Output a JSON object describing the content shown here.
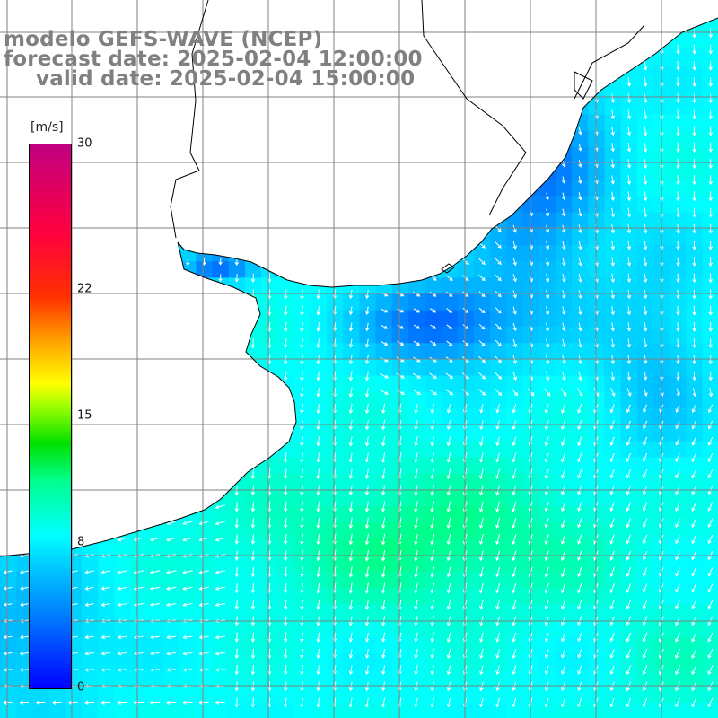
{
  "title": {
    "line1": "modelo GEFS-WAVE (NCEP)",
    "line2": "forecast date: 2025-02-04 12:00:00",
    "line3": "valid date: 2025-02-04 15:00:00"
  },
  "colorbar": {
    "unit": "[m/s]",
    "min": 0,
    "max": 30,
    "ticks": [
      {
        "value": 30,
        "label": "30"
      },
      {
        "value": 22,
        "label": "22"
      },
      {
        "value": 15,
        "label": "15"
      },
      {
        "value": 8,
        "label": "8"
      },
      {
        "value": 0,
        "label": "0"
      }
    ],
    "colors": [
      "#0000ff",
      "#0060ff",
      "#00b0ff",
      "#00ffff",
      "#00ff80",
      "#00e000",
      "#80ff00",
      "#ffff00",
      "#ff8000",
      "#ff2000",
      "#ff0060",
      "#c0007f"
    ]
  },
  "map": {
    "lon_range": [
      -75,
      -30
    ],
    "lat_range": [
      -50,
      -20
    ],
    "grid_step_deg": 2,
    "colors": {
      "land": "#ffffff",
      "coast": "#000000",
      "grid": "#808080",
      "arrow": "#ffffff"
    }
  },
  "wind_field_description": "Surface wind speed shaded over ocean with white direction arrows; speeds roughly 0-12 m/s, strongest (~11-12 m/s, green) in the central-south region, weakest (blue) near the Río de la Plata estuary and southern Brazil coast."
}
